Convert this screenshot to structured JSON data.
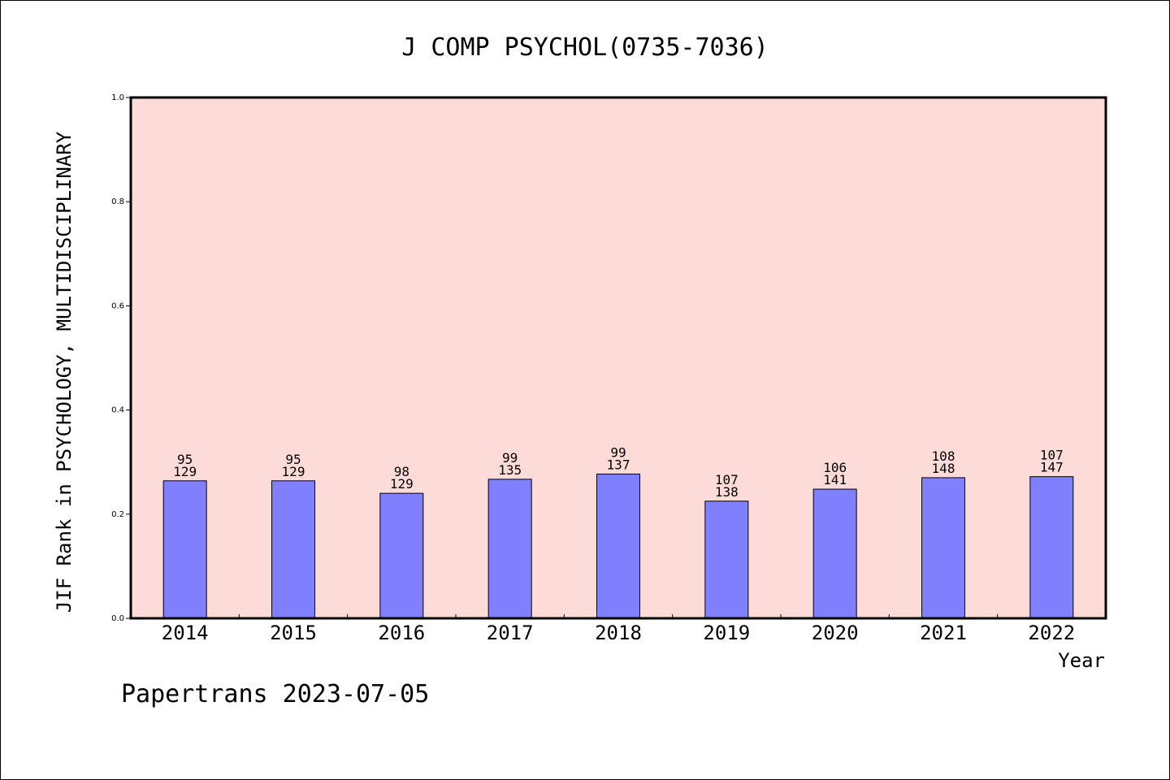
{
  "chart_data": {
    "type": "bar",
    "title": "J COMP PSYCHOL(0735-7036)",
    "xlabel": "Year",
    "ylabel": "JIF Rank in PSYCHOLOGY, MULTIDISCIPLINARY",
    "footer": "Papertrans 2023-07-05",
    "categories": [
      "2014",
      "2015",
      "2016",
      "2017",
      "2018",
      "2019",
      "2020",
      "2021",
      "2022"
    ],
    "values": [
      0.264,
      0.264,
      0.24,
      0.267,
      0.277,
      0.225,
      0.248,
      0.27,
      0.272
    ],
    "rank": [
      "95",
      "95",
      "98",
      "99",
      "99",
      "107",
      "106",
      "108",
      "107"
    ],
    "total": [
      "129",
      "129",
      "129",
      "135",
      "137",
      "138",
      "141",
      "148",
      "147"
    ],
    "ylim": [
      0,
      1.0
    ],
    "yticks": [
      "0.0",
      "0.2",
      "0.4",
      "0.6",
      "0.8",
      "1.0"
    ],
    "grid": false,
    "colors": {
      "plot_background": "#fddbd8",
      "bar_fill": "#8080ff",
      "bar_stroke": "#000000",
      "axis": "#000000"
    }
  }
}
